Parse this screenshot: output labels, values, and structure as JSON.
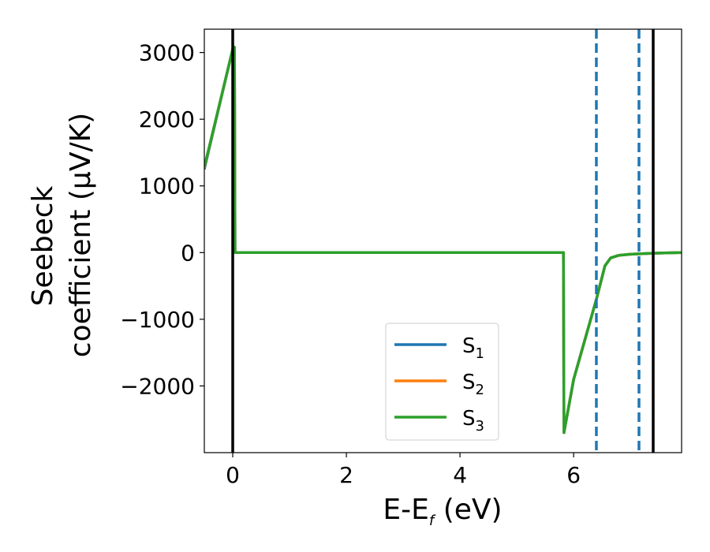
{
  "chart_data": {
    "type": "line",
    "xlabel": {
      "main": "E-E",
      "sub": "f",
      "unit": " (eV)"
    },
    "ylabel": {
      "line1": "Seebeck",
      "line2": "coefficient  (μV/K)"
    },
    "xlim": [
      -0.5,
      7.9
    ],
    "ylim": [
      -3000,
      3350
    ],
    "xticks": [
      0,
      2,
      4,
      6
    ],
    "yticks": [
      3000,
      2000,
      1000,
      0,
      -1000,
      -2000
    ],
    "xtick_labels": [
      "0",
      "2",
      "4",
      "6"
    ],
    "ytick_labels": [
      "3000",
      "2000",
      "1000",
      "0",
      "−1000",
      "−2000"
    ],
    "vlines_solid": [
      0.0,
      7.4
    ],
    "vlines_dashed": [
      6.4,
      7.15
    ],
    "legend_position": "lower-center",
    "series": [
      {
        "name": "S",
        "sub": "1",
        "color": "#1f77b4",
        "x": [
          -0.5,
          0.0,
          0.03,
          0.04,
          5.82,
          5.83,
          6.0,
          6.4,
          6.55,
          6.65,
          6.8,
          7.0,
          7.4,
          7.9
        ],
        "y": [
          1250,
          3050,
          3080,
          0,
          0,
          -2700,
          -1900,
          -700,
          -200,
          -80,
          -40,
          -25,
          -10,
          0
        ]
      },
      {
        "name": "S",
        "sub": "2",
        "color": "#ff7f0e",
        "x": [
          -0.5,
          0.0,
          0.03,
          0.04,
          5.82,
          5.83,
          6.0,
          6.4,
          6.55,
          6.65,
          6.8,
          7.0,
          7.4,
          7.9
        ],
        "y": [
          1270,
          3050,
          3080,
          0,
          0,
          -2700,
          -1900,
          -700,
          -200,
          -80,
          -40,
          -25,
          -10,
          0
        ]
      },
      {
        "name": "S",
        "sub": "3",
        "color": "#2ca02c",
        "x": [
          -0.5,
          0.0,
          0.03,
          0.04,
          5.82,
          5.83,
          6.0,
          6.4,
          6.55,
          6.65,
          6.8,
          7.0,
          7.4,
          7.9
        ],
        "y": [
          1280,
          3050,
          3080,
          0,
          0,
          -2700,
          -1900,
          -700,
          -200,
          -80,
          -40,
          -25,
          -10,
          0
        ]
      }
    ]
  }
}
